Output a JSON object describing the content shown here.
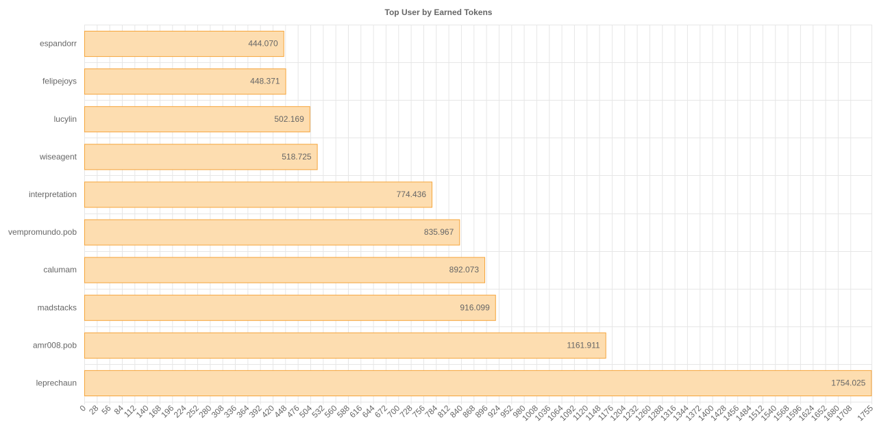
{
  "chart_data": {
    "type": "bar",
    "orientation": "horizontal",
    "title": "Top User by Earned Tokens",
    "xlabel": "",
    "ylabel": "",
    "categories": [
      "espandorr",
      "felipejoys",
      "lucylin",
      "wiseagent",
      "interpretation",
      "vempromundo.pob",
      "calumam",
      "madstacks",
      "amr008.pob",
      "leprechaun"
    ],
    "values": [
      444.07,
      448.371,
      502.169,
      518.725,
      774.436,
      835.967,
      892.073,
      916.099,
      1161.911,
      1754.025
    ],
    "value_labels": [
      "444.070",
      "448.371",
      "502.169",
      "518.725",
      "774.436",
      "835.967",
      "892.073",
      "916.099",
      "1161.911",
      "1754.025"
    ],
    "xlim": [
      0,
      1755
    ],
    "x_ticks": [
      "0",
      "28",
      "56",
      "84",
      "112",
      "140",
      "168",
      "196",
      "224",
      "252",
      "280",
      "308",
      "336",
      "364",
      "392",
      "420",
      "448",
      "476",
      "504",
      "532",
      "560",
      "588",
      "616",
      "644",
      "672",
      "700",
      "728",
      "756",
      "784",
      "812",
      "840",
      "868",
      "896",
      "924",
      "952",
      "980",
      "1008",
      "1036",
      "1064",
      "1092",
      "1120",
      "1148",
      "1176",
      "1204",
      "1232",
      "1260",
      "1288",
      "1316",
      "1344",
      "1372",
      "1400",
      "1428",
      "1456",
      "1484",
      "1512",
      "1540",
      "1568",
      "1596",
      "1624",
      "1652",
      "1680",
      "1708",
      "1755"
    ],
    "grid": true,
    "legend": "none",
    "colors": {
      "bar_fill": "#fdddb0",
      "bar_stroke": "#f5a43a",
      "grid": "#e6e6e6",
      "text": "#666666"
    }
  }
}
